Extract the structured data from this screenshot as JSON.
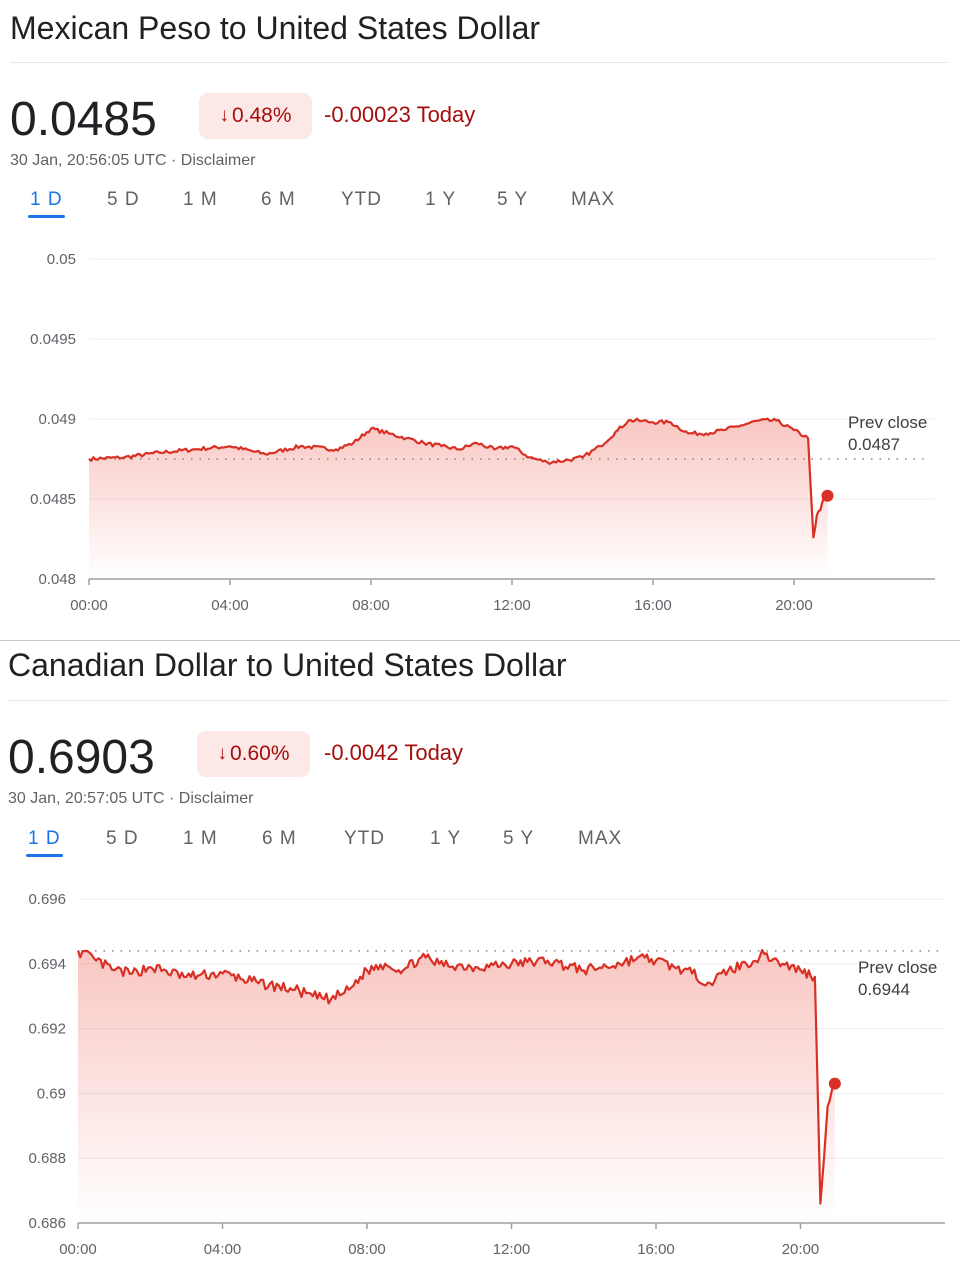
{
  "panels": [
    {
      "title": "Mexican Peso to United States Dollar",
      "price": "0.0485",
      "change_pct": "0.48%",
      "change_abs": "-0.00023 Today",
      "timestamp": "30 Jan, 20:56:05 UTC",
      "disclaimer": "Disclaimer",
      "tabs": [
        {
          "label": "1 D",
          "active": true
        },
        {
          "label": "5 D",
          "active": false
        },
        {
          "label": "1 M",
          "active": false
        },
        {
          "label": "6 M",
          "active": false
        },
        {
          "label": "YTD",
          "active": false
        },
        {
          "label": "1 Y",
          "active": false
        },
        {
          "label": "5 Y",
          "active": false
        },
        {
          "label": "MAX",
          "active": false
        }
      ],
      "prev_close_label": "Prev close",
      "prev_close_value": "0.0487"
    },
    {
      "title": "Canadian Dollar to United States Dollar",
      "price": "0.6903",
      "change_pct": "0.60%",
      "change_abs": "-0.0042 Today",
      "timestamp": "30 Jan, 20:57:05 UTC",
      "disclaimer": "Disclaimer",
      "tabs": [
        {
          "label": "1 D",
          "active": true
        },
        {
          "label": "5 D",
          "active": false
        },
        {
          "label": "1 M",
          "active": false
        },
        {
          "label": "6 M",
          "active": false
        },
        {
          "label": "YTD",
          "active": false
        },
        {
          "label": "1 Y",
          "active": false
        },
        {
          "label": "5 Y",
          "active": false
        },
        {
          "label": "MAX",
          "active": false
        }
      ],
      "prev_close_label": "Prev close",
      "prev_close_value": "0.6944"
    }
  ],
  "colors": {
    "line": "#d93025",
    "negative_text": "#a50e0e",
    "badge_bg": "#fce8e6",
    "tab_active": "#1a73e8",
    "muted_text": "#5f6368"
  },
  "icons": {
    "change_arrow": "arrow-down-icon"
  },
  "chart_data": [
    {
      "type": "area",
      "title": "",
      "xlabel": "",
      "ylabel": "",
      "x_range_hours": [
        0,
        24
      ],
      "x_tick_hours": [
        0,
        4,
        8,
        12,
        16,
        20
      ],
      "x_tick_labels": [
        "00:00",
        "04:00",
        "08:00",
        "12:00",
        "16:00",
        "20:00"
      ],
      "ylim": [
        0.048,
        0.05
      ],
      "y_ticks": [
        0.048,
        0.0485,
        0.049,
        0.0495,
        0.05
      ],
      "y_tick_labels": [
        "0.048",
        "0.0485",
        "0.049",
        "0.0495",
        "0.05"
      ],
      "grid": true,
      "prev_close": 0.04875,
      "series": [
        {
          "x_hours": [
            0.0,
            1.0,
            2.0,
            3.0,
            4.0,
            5.0,
            6.0,
            7.0,
            7.5,
            8.0,
            8.5,
            9.0,
            9.5,
            10.0,
            10.5,
            11.0,
            11.5,
            12.0,
            12.5,
            13.0,
            13.5,
            14.0,
            14.5,
            15.0,
            15.3,
            15.6,
            16.0,
            16.5,
            17.0,
            17.5,
            18.0,
            18.5,
            19.0,
            19.5,
            20.0,
            20.4,
            20.55,
            20.65,
            20.75,
            20.85,
            20.95
          ],
          "values": [
            0.04875,
            0.04876,
            0.04879,
            0.04881,
            0.04883,
            0.04878,
            0.04883,
            0.04881,
            0.04885,
            0.04894,
            0.04891,
            0.04888,
            0.04885,
            0.04883,
            0.04881,
            0.04885,
            0.04881,
            0.04883,
            0.04876,
            0.04873,
            0.04874,
            0.04876,
            0.04883,
            0.04893,
            0.04899,
            0.04899,
            0.04898,
            0.04898,
            0.04891,
            0.04891,
            0.04893,
            0.04896,
            0.04899,
            0.04899,
            0.04893,
            0.04888,
            0.04826,
            0.0484,
            0.04843,
            0.04851,
            0.04852
          ]
        }
      ]
    },
    {
      "type": "area",
      "title": "",
      "xlabel": "",
      "ylabel": "",
      "x_range_hours": [
        0,
        24
      ],
      "x_tick_hours": [
        0,
        4,
        8,
        12,
        16,
        20
      ],
      "x_tick_labels": [
        "00:00",
        "04:00",
        "08:00",
        "12:00",
        "16:00",
        "20:00"
      ],
      "ylim": [
        0.686,
        0.696
      ],
      "y_ticks": [
        0.686,
        0.688,
        0.69,
        0.692,
        0.694,
        0.696
      ],
      "y_tick_labels": [
        "0.686",
        "0.688",
        "0.69",
        "0.692",
        "0.694",
        "0.696"
      ],
      "grid": true,
      "prev_close": 0.6944,
      "series": [
        {
          "x_hours": [
            0.0,
            0.5,
            1.0,
            1.5,
            2.0,
            3.0,
            4.0,
            5.0,
            6.0,
            6.5,
            7.0,
            7.5,
            8.0,
            8.5,
            9.0,
            9.5,
            10.0,
            11.0,
            12.0,
            13.0,
            14.0,
            15.0,
            15.5,
            16.0,
            16.5,
            17.0,
            17.5,
            18.0,
            18.5,
            19.0,
            19.5,
            20.0,
            20.4,
            20.55,
            20.65,
            20.75,
            20.85,
            20.95
          ],
          "values": [
            0.6944,
            0.6941,
            0.6938,
            0.6937,
            0.6939,
            0.6936,
            0.6937,
            0.6934,
            0.6932,
            0.693,
            0.6929,
            0.6932,
            0.6938,
            0.694,
            0.6938,
            0.6942,
            0.694,
            0.6939,
            0.694,
            0.6941,
            0.6938,
            0.694,
            0.6942,
            0.6941,
            0.6939,
            0.6937,
            0.6934,
            0.6938,
            0.694,
            0.6943,
            0.694,
            0.6938,
            0.6936,
            0.6866,
            0.688,
            0.6896,
            0.69,
            0.6903
          ]
        }
      ]
    }
  ]
}
